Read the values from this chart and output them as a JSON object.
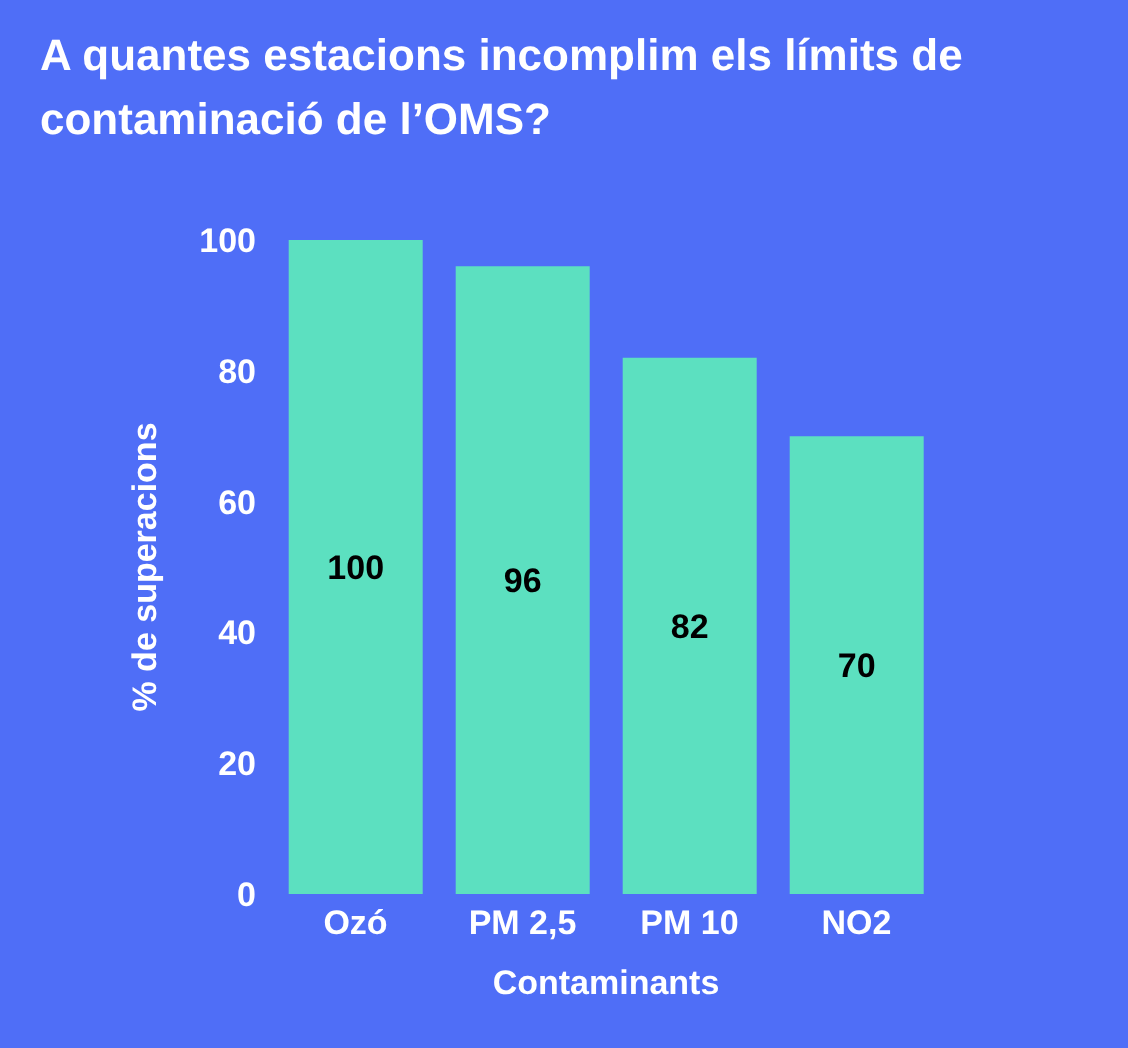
{
  "chart_data": {
    "type": "bar",
    "title": "A quantes estacions incomplim els límits de contaminació de l’OMS?",
    "xlabel": "Contaminants",
    "ylabel": "% de superacions",
    "categories": [
      "Ozó",
      "PM 2,5",
      "PM 10",
      "NO2"
    ],
    "values": [
      100,
      96,
      82,
      70
    ],
    "color": "#5ce0c0",
    "ylim": [
      0,
      100
    ],
    "yticks": [
      0,
      20,
      40,
      60,
      80,
      100
    ],
    "data_labels": true,
    "grid": false,
    "legend": false
  }
}
